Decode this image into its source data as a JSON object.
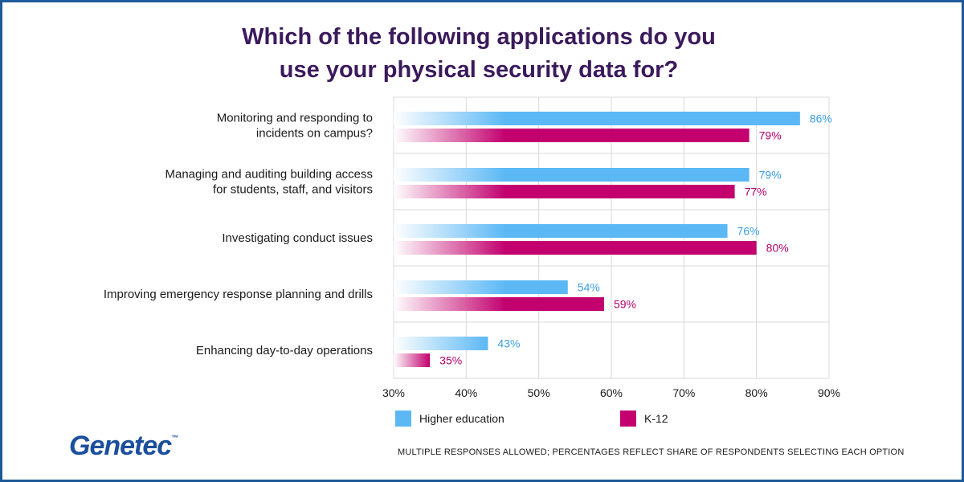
{
  "brand": {
    "name": "Genetec",
    "trademark": "™",
    "color": "#1b4f9c"
  },
  "footnote": "MULTIPLE RESPONSES ALLOWED; PERCENTAGES REFLECT SHARE OF RESPONDENTS SELECTING EACH OPTION",
  "chart_data": {
    "type": "bar",
    "orientation": "horizontal",
    "title_lines": [
      "Which of the following applications do you",
      "use your physical security data for?"
    ],
    "categories": [
      [
        "Monitoring and responding to",
        "incidents on campus?"
      ],
      [
        "Managing and auditing building access",
        "for students, staff, and visitors"
      ],
      [
        "Investigating conduct issues"
      ],
      [
        "Improving emergency response planning and drills"
      ],
      [
        "Enhancing day-to-day operations"
      ]
    ],
    "series": [
      {
        "name": "Higher education",
        "color": "#5bb8f5",
        "values": [
          86,
          79,
          76,
          54,
          43
        ]
      },
      {
        "name": "K-12",
        "color": "#c2006e",
        "values": [
          79,
          77,
          80,
          59,
          35
        ]
      }
    ],
    "value_labels": [
      [
        "86%",
        "79%",
        "76%",
        "54%",
        "43%"
      ],
      [
        "79%",
        "77%",
        "80%",
        "59%",
        "35%"
      ]
    ],
    "xlim": [
      30,
      90
    ],
    "xticks": [
      30,
      40,
      50,
      60,
      70,
      80,
      90
    ],
    "xtick_labels": [
      "30%",
      "40%",
      "50%",
      "60%",
      "70%",
      "80%",
      "90%"
    ],
    "grid": true,
    "legend_position": "bottom"
  }
}
